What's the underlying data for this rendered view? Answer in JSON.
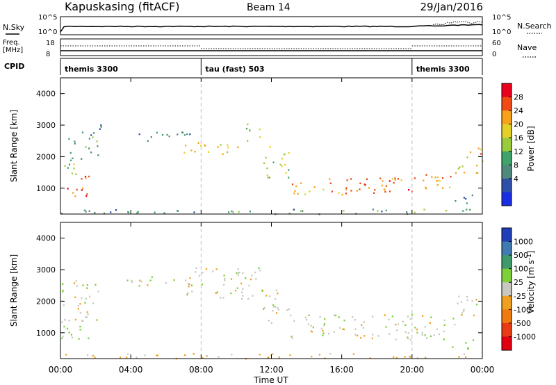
{
  "header": {
    "station": "Kapuskasing (fitACF)",
    "beam": "Beam 14",
    "date": "29/Jan/2016"
  },
  "top_panels": {
    "nsky_label": "N.Sky",
    "nsky_ticks": [
      "10^5",
      "10^0"
    ],
    "nsearch_label": "N.Search",
    "nsearch_ticks": [
      "10^5",
      "10^0"
    ],
    "freq_label": "Freq.",
    "freq_unit": "[MHz]",
    "freq_ticks": [
      "18",
      "8"
    ],
    "nave_label": "Nave",
    "nave_ticks": [
      "60",
      "0"
    ],
    "cpid_label": "CPID",
    "cpid_segments": [
      {
        "label": "themis 3300",
        "start_h": 0,
        "end_h": 8
      },
      {
        "label": "tau (fast) 503",
        "start_h": 8,
        "end_h": 20
      },
      {
        "label": "themis 3300",
        "start_h": 20,
        "end_h": 24
      }
    ]
  },
  "axes": {
    "x_label": "Time UT",
    "x_ticks": [
      "00:00",
      "04:00",
      "08:00",
      "12:00",
      "16:00",
      "20:00",
      "00:00"
    ],
    "x_tick_hours": [
      0,
      4,
      8,
      12,
      16,
      20,
      24
    ],
    "y_label": "Slant Range [km]",
    "y_ticks": [
      "4000",
      "3000",
      "2000",
      "1000"
    ],
    "y_tick_values": [
      4000,
      3000,
      2000,
      1000
    ],
    "y_range_km": [
      180,
      4500
    ]
  },
  "power_colorbar": {
    "label": "Power [dB]",
    "ticks": [
      "28",
      "24",
      "20",
      "16",
      "12",
      "8",
      "4"
    ],
    "colors": [
      "#e8001e",
      "#f04a16",
      "#f7a21a",
      "#e5d02a",
      "#9acb3c",
      "#3fa36a",
      "#4f8a7d",
      "#2f4fa8",
      "#1a2de0"
    ]
  },
  "velocity_colorbar": {
    "label": "Velocity [m s-1]",
    "ticks": [
      "1000",
      "500",
      "100",
      "25",
      "-25",
      "-100",
      "-500",
      "-1000"
    ],
    "colors": [
      "#1f3fb8",
      "#3f7ab0",
      "#3f9a6a",
      "#7fcf3a",
      "#c8c8c0",
      "#f0a020",
      "#f07a10",
      "#e83a14",
      "#e00010"
    ]
  },
  "chart_data": [
    {
      "type": "heatmap",
      "title": "Power",
      "xlabel": "Time UT",
      "ylabel": "Slant Range [km]",
      "xlim": [
        0,
        24
      ],
      "ylim": [
        180,
        4500
      ],
      "colorbar_label": "Power [dB]",
      "colorbar_range": [
        0,
        30
      ],
      "regions": [
        {
          "t0": 0.0,
          "t1": 1.6,
          "r0": 750,
          "r1": 1400,
          "power_db": 26
        },
        {
          "t0": 0.0,
          "t1": 1.3,
          "r0": 1400,
          "r1": 1900,
          "power_db": 14
        },
        {
          "t0": 0.4,
          "t1": 2.2,
          "r0": 1900,
          "r1": 2800,
          "power_db": 10
        },
        {
          "t0": 2.2,
          "t1": 3.0,
          "r0": 2900,
          "r1": 3200,
          "power_db": 6
        },
        {
          "t0": 3.5,
          "t1": 7.5,
          "r0": 2500,
          "r1": 2800,
          "power_db": 8
        },
        {
          "t0": 7.0,
          "t1": 10.5,
          "r0": 2100,
          "r1": 2500,
          "power_db": 18
        },
        {
          "t0": 10.5,
          "t1": 11.5,
          "r0": 2500,
          "r1": 3100,
          "power_db": 14
        },
        {
          "t0": 11.5,
          "t1": 13.0,
          "r0": 1300,
          "r1": 2400,
          "power_db": 16
        },
        {
          "t0": 13.0,
          "t1": 20.0,
          "r0": 800,
          "r1": 1400,
          "power_db": 24
        },
        {
          "t0": 20.0,
          "t1": 22.5,
          "r0": 1000,
          "r1": 1600,
          "power_db": 22
        },
        {
          "t0": 22.5,
          "t1": 24.0,
          "r0": 1500,
          "r1": 2300,
          "power_db": 20
        },
        {
          "t0": 22.0,
          "t1": 23.5,
          "r0": 500,
          "r1": 800,
          "power_db": 6
        },
        {
          "t0": 0.0,
          "t1": 24.0,
          "r0": 200,
          "r1": 360,
          "power_db": 10
        }
      ]
    },
    {
      "type": "heatmap",
      "title": "Velocity",
      "xlabel": "Time UT",
      "ylabel": "Slant Range [km]",
      "xlim": [
        0,
        24
      ],
      "ylim": [
        180,
        4500
      ],
      "colorbar_label": "Velocity [m s-1]",
      "colorbar_range": [
        -1000,
        1000
      ],
      "regions": [
        {
          "t0": 0.0,
          "t1": 1.6,
          "r0": 750,
          "r1": 1400,
          "velocity": 120
        },
        {
          "t0": 0.0,
          "t1": 2.2,
          "r0": 1400,
          "r1": 2800,
          "velocity": 0
        },
        {
          "t0": 3.5,
          "t1": 7.5,
          "r0": 2500,
          "r1": 2800,
          "velocity": 0
        },
        {
          "t0": 7.0,
          "t1": 11.5,
          "r0": 2100,
          "r1": 3100,
          "velocity": 0
        },
        {
          "t0": 11.5,
          "t1": 13.0,
          "r0": 1300,
          "r1": 2400,
          "velocity": 0
        },
        {
          "t0": 13.0,
          "t1": 22.5,
          "r0": 800,
          "r1": 1600,
          "velocity": 0
        },
        {
          "t0": 22.5,
          "t1": 24.0,
          "r0": 1500,
          "r1": 2300,
          "velocity": 0
        },
        {
          "t0": 22.0,
          "t1": 23.5,
          "r0": 500,
          "r1": 800,
          "velocity": 150
        },
        {
          "t0": 0.0,
          "t1": 24.0,
          "r0": 200,
          "r1": 360,
          "velocity": -120
        }
      ]
    }
  ]
}
